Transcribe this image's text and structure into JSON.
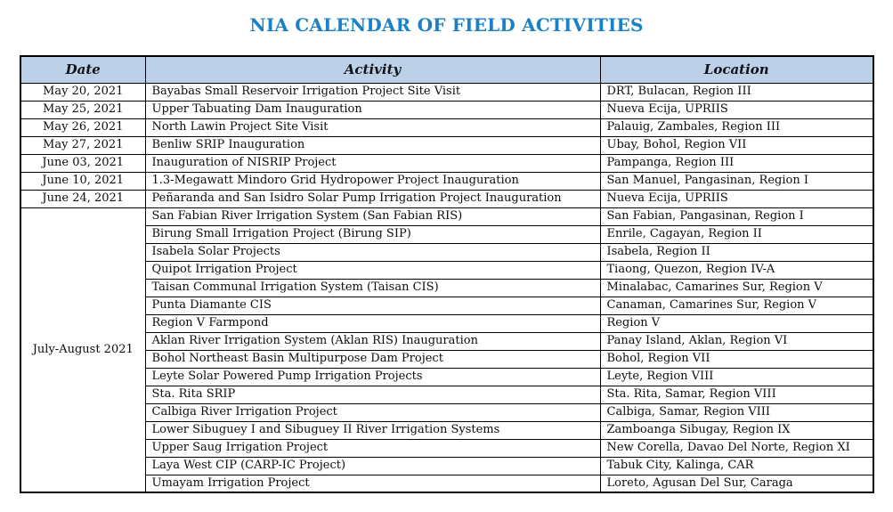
{
  "page": {
    "title": "NIA CALENDAR OF FIELD ACTIVITIES"
  },
  "colors": {
    "title_text": "#1b80c5",
    "header_background": "#bcd0e8",
    "table_border": "#000000",
    "body_text": "#0d0d0d"
  },
  "table": {
    "headers": [
      "Date",
      "Activity",
      "Location"
    ],
    "rows": [
      {
        "date": "May 20, 2021",
        "rowspan": 1,
        "activity": "Bayabas Small Reservoir Irrigation Project Site Visit",
        "location": "DRT, Bulacan, Region III"
      },
      {
        "date": "May 25, 2021",
        "rowspan": 1,
        "activity": "Upper Tabuating Dam Inauguration",
        "location": "Nueva Ecija, UPRIIS"
      },
      {
        "date": "May 26, 2021",
        "rowspan": 1,
        "activity": "North Lawin Project Site Visit",
        "location": "Palauig, Zambales, Region III"
      },
      {
        "date": "May 27, 2021",
        "rowspan": 1,
        "activity": "Benliw SRIP Inauguration",
        "location": "Ubay, Bohol, Region VII"
      },
      {
        "date": "June 03, 2021",
        "rowspan": 1,
        "activity": "Inauguration of NISRIP Project",
        "location": "Pampanga, Region III"
      },
      {
        "date": "June 10, 2021",
        "rowspan": 1,
        "activity": "1.3-Megawatt Mindoro Grid Hydropower Project Inauguration",
        "location": "San Manuel, Pangasinan, Region I"
      },
      {
        "date": "June 24, 2021",
        "rowspan": 1,
        "activity": "Peñaranda and San Isidro Solar Pump Irrigation Project Inauguration",
        "location": "Nueva Ecija, UPRIIS"
      },
      {
        "date": "July-August 2021",
        "rowspan": 16,
        "activity": "San Fabian River Irrigation System (San Fabian RIS)",
        "location": "San Fabian, Pangasinan, Region I"
      },
      {
        "activity": "Birung Small Irrigation Project (Birung SIP)",
        "location": "Enrile, Cagayan, Region II"
      },
      {
        "activity": "Isabela Solar Projects",
        "location": "Isabela, Region II"
      },
      {
        "activity": "Quipot Irrigation Project",
        "location": "Tiaong, Quezon, Region IV-A"
      },
      {
        "activity": "Taisan Communal Irrigation System (Taisan CIS)",
        "location": "Minalabac, Camarines Sur, Region V"
      },
      {
        "activity": "Punta Diamante CIS",
        "location": "Canaman, Camarines Sur, Region V"
      },
      {
        "activity": "Region V Farmpond",
        "location": "Region V"
      },
      {
        "activity": "Aklan River Irrigation System (Aklan RIS) Inauguration",
        "location": "Panay Island, Aklan, Region VI"
      },
      {
        "activity": "Bohol Northeast Basin Multipurpose Dam Project",
        "location": "Bohol, Region VII"
      },
      {
        "activity": "Leyte Solar Powered Pump Irrigation Projects",
        "location": "Leyte, Region VIII"
      },
      {
        "activity": "Sta. Rita SRIP",
        "location": "Sta. Rita, Samar, Region VIII"
      },
      {
        "activity": "Calbiga River Irrigation Project",
        "location": "Calbiga, Samar, Region VIII"
      },
      {
        "activity": "Lower Sibuguey I and Sibuguey II River Irrigation Systems",
        "location": "Zamboanga Sibugay, Region IX"
      },
      {
        "activity": "Upper Saug Irrigation Project",
        "location": "New Corella, Davao Del Norte, Region XI"
      },
      {
        "activity": "Laya West CIP (CARP-IC Project)",
        "location": "Tabuk City, Kalinga, CAR"
      },
      {
        "activity": "Umayam Irrigation Project",
        "location": "Loreto, Agusan Del Sur, Caraga"
      }
    ]
  }
}
